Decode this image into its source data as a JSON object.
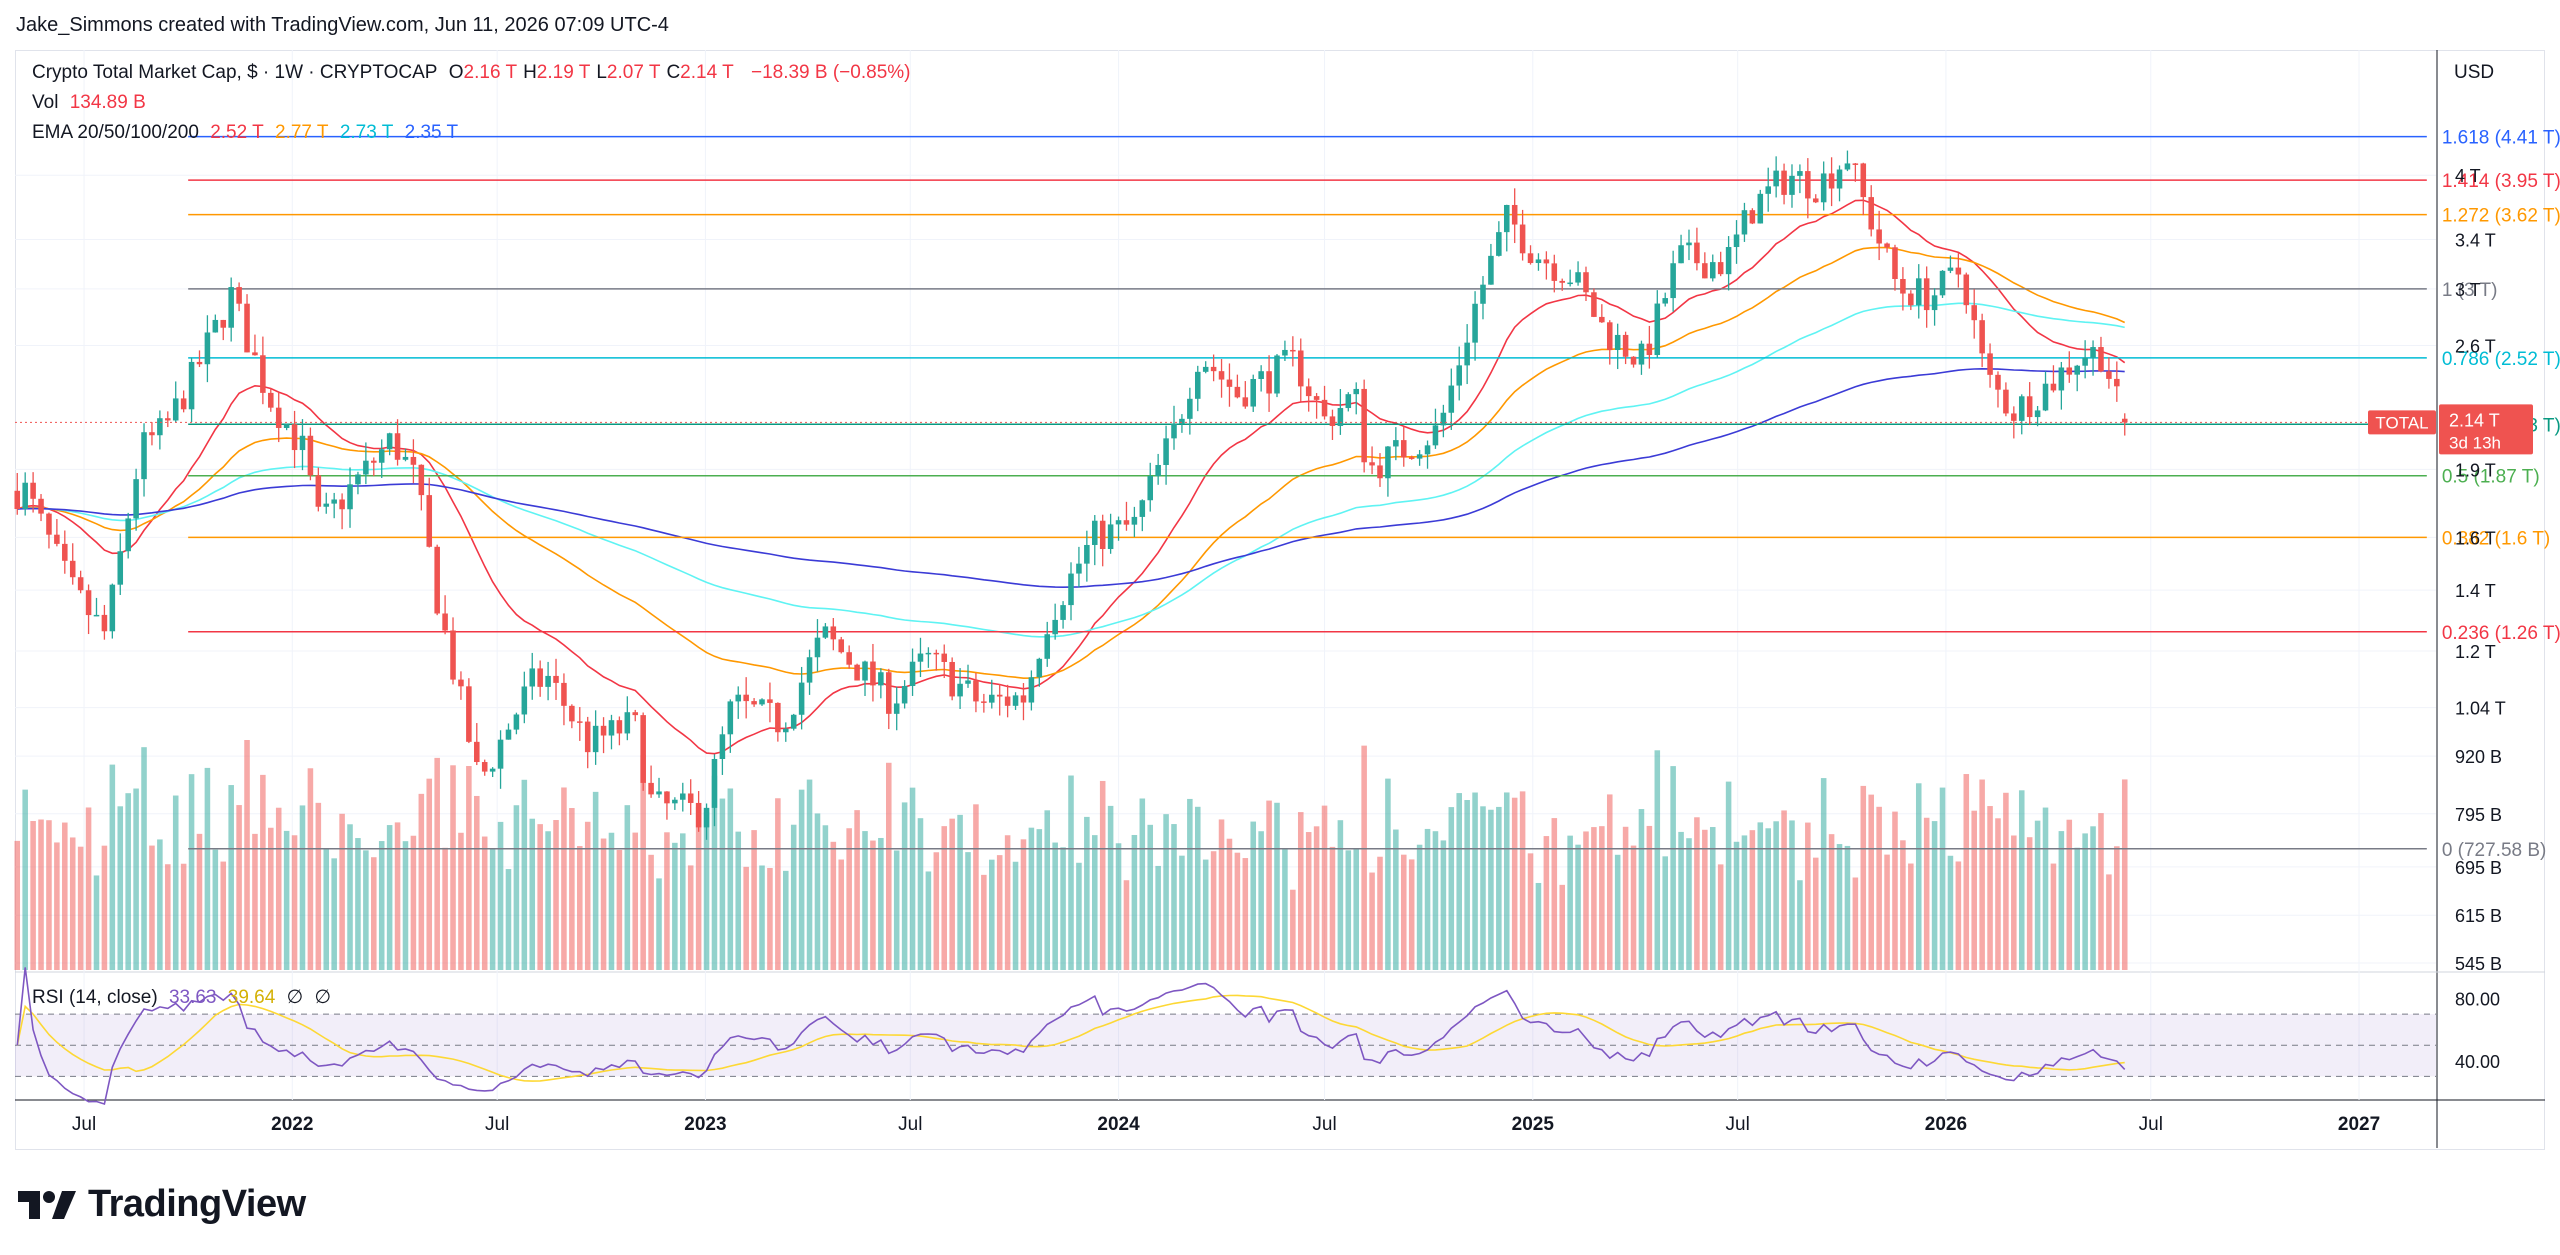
{
  "caption": "Jake_Simmons created with TradingView.com, Jun 11, 2026 07:09 UTC-4",
  "footer": {
    "brand": "TradingView"
  },
  "currency": "USD",
  "legend": {
    "symbol_line": "Crypto Total Market Cap, $ · 1W · CRYPTOCAP",
    "ohlc": [
      {
        "k": "O",
        "v": "2.16 T"
      },
      {
        "k": "H",
        "v": "2.19 T"
      },
      {
        "k": "L",
        "v": "2.07 T"
      },
      {
        "k": "C",
        "v": "2.14 T"
      }
    ],
    "change": "−18.39 B (−0.85%)",
    "vol_label": "Vol",
    "vol_value": "134.89 B",
    "ema_label": "EMA 20/50/100/200",
    "ema_values": [
      "2.52 T",
      "2.77 T",
      "2.73 T",
      "2.35 T"
    ],
    "rsi_label": "RSI (14, close)",
    "rsi_values": [
      "33.63",
      "39.64"
    ],
    "rsi_icons": [
      "∅",
      "∅"
    ]
  },
  "price_tag": {
    "label": "TOTAL",
    "value": "2.14 T",
    "countdown": "3d 13h"
  },
  "colors": {
    "up": "#26a69a",
    "down": "#ef5350",
    "ema20": "#f23645",
    "ema50": "#ff9800",
    "ema100": "#5ff3f3",
    "ema200": "#3b3bd6",
    "rsi": "#7e57c2",
    "rsi_ma": "#fdd835"
  },
  "chart_data": {
    "type": "candlestick",
    "title": "Crypto Total Market Cap, $ · 1W · CRYPTOCAP",
    "y_scale": "log",
    "ylim": [
      "545 B",
      "4.8 T"
    ],
    "y_ticks": [
      "4 T",
      "3.4 T",
      "3 T",
      "2.6 T",
      "1.9 T",
      "1.6 T",
      "1.4 T",
      "1.2 T",
      "1.04 T",
      "920 B",
      "795 B",
      "695 B",
      "615 B",
      "545 B"
    ],
    "x_ticks": [
      "Jul",
      "2022",
      "Jul",
      "2023",
      "Jul",
      "2024",
      "Jul",
      "2025",
      "Jul",
      "2026",
      "Jul",
      "2027"
    ],
    "x_range": [
      "2021-05",
      "2027-03"
    ],
    "fib_levels": [
      {
        "label": "1.618 (4.41 T)",
        "value": 4.41,
        "color": "#2962ff"
      },
      {
        "label": "1.414 (3.95 T)",
        "value": 3.95,
        "color": "#f23645"
      },
      {
        "label": "1.272 (3.62 T)",
        "value": 3.62,
        "color": "#ff9800"
      },
      {
        "label": "1 (3 T)",
        "value": 3.0,
        "color": "#787b86"
      },
      {
        "label": "0.786 (2.52 T)",
        "value": 2.52,
        "color": "#00bcd4"
      },
      {
        "label": "0.618 (2.13 T)",
        "value": 2.13,
        "color": "#089981"
      },
      {
        "label": "0.5 (1.87 T)",
        "value": 1.87,
        "color": "#4caf50"
      },
      {
        "label": "0.382 (1.6 T)",
        "value": 1.6,
        "color": "#ff9800"
      },
      {
        "label": "0.236 (1.26 T)",
        "value": 1.26,
        "color": "#f23645"
      },
      {
        "label": "0 (727.58 B)",
        "value": 0.72758,
        "color": "#787b86"
      }
    ],
    "fib_start": "2021-10",
    "fib_end": "2026-06",
    "close_anchors": [
      [
        "2021-05-10",
        1.8
      ],
      [
        "2021-06-20",
        1.4
      ],
      [
        "2021-07-20",
        1.25
      ],
      [
        "2021-08-20",
        2.0
      ],
      [
        "2021-09-10",
        2.1
      ],
      [
        "2021-10-05",
        2.4
      ],
      [
        "2021-11-08",
        2.95
      ],
      [
        "2021-12-10",
        2.3
      ],
      [
        "2022-01-10",
        2.0
      ],
      [
        "2022-01-25",
        1.65
      ],
      [
        "2022-03-30",
        2.05
      ],
      [
        "2022-04-20",
        1.85
      ],
      [
        "2022-05-10",
        1.35
      ],
      [
        "2022-06-15",
        0.86
      ],
      [
        "2022-07-30",
        1.1
      ],
      [
        "2022-08-15",
        1.12
      ],
      [
        "2022-09-20",
        0.95
      ],
      [
        "2022-10-30",
        1.0
      ],
      [
        "2022-11-15",
        0.81
      ],
      [
        "2022-12-30",
        0.8
      ],
      [
        "2023-01-25",
        1.05
      ],
      [
        "2023-03-10",
        1.0
      ],
      [
        "2023-04-15",
        1.25
      ],
      [
        "2023-06-15",
        1.06
      ],
      [
        "2023-07-15",
        1.18
      ],
      [
        "2023-09-01",
        1.05
      ],
      [
        "2023-10-10",
        1.07
      ],
      [
        "2023-10-30",
        1.3
      ],
      [
        "2023-12-10",
        1.6
      ],
      [
        "2024-01-15",
        1.65
      ],
      [
        "2024-02-20",
        2.1
      ],
      [
        "2024-03-12",
        2.55
      ],
      [
        "2024-04-15",
        2.3
      ],
      [
        "2024-06-05",
        2.5
      ],
      [
        "2024-07-01",
        2.15
      ],
      [
        "2024-07-28",
        2.3
      ],
      [
        "2024-08-08",
        1.9
      ],
      [
        "2024-10-10",
        2.1
      ],
      [
        "2024-11-12",
        2.9
      ],
      [
        "2024-12-10",
        3.6
      ],
      [
        "2025-01-01",
        3.3
      ],
      [
        "2025-02-05",
        3.1
      ],
      [
        "2025-03-05",
        2.7
      ],
      [
        "2025-04-08",
        2.5
      ],
      [
        "2025-05-10",
        3.25
      ],
      [
        "2025-06-20",
        3.2
      ],
      [
        "2025-07-15",
        3.7
      ],
      [
        "2025-08-15",
        4.0
      ],
      [
        "2025-09-10",
        3.9
      ],
      [
        "2025-10-06",
        4.2
      ],
      [
        "2025-10-20",
        3.75
      ],
      [
        "2025-11-20",
        3.0
      ],
      [
        "2025-12-20",
        2.95
      ],
      [
        "2026-01-15",
        3.15
      ],
      [
        "2026-02-05",
        2.4
      ],
      [
        "2026-03-01",
        2.2
      ],
      [
        "2026-04-01",
        2.35
      ],
      [
        "2026-05-01",
        2.55
      ],
      [
        "2026-05-20",
        2.55
      ],
      [
        "2026-06-05",
        2.16
      ],
      [
        "2026-06-11",
        2.14
      ]
    ],
    "rsi_ticks": [
      "80.00",
      "40.00"
    ]
  }
}
